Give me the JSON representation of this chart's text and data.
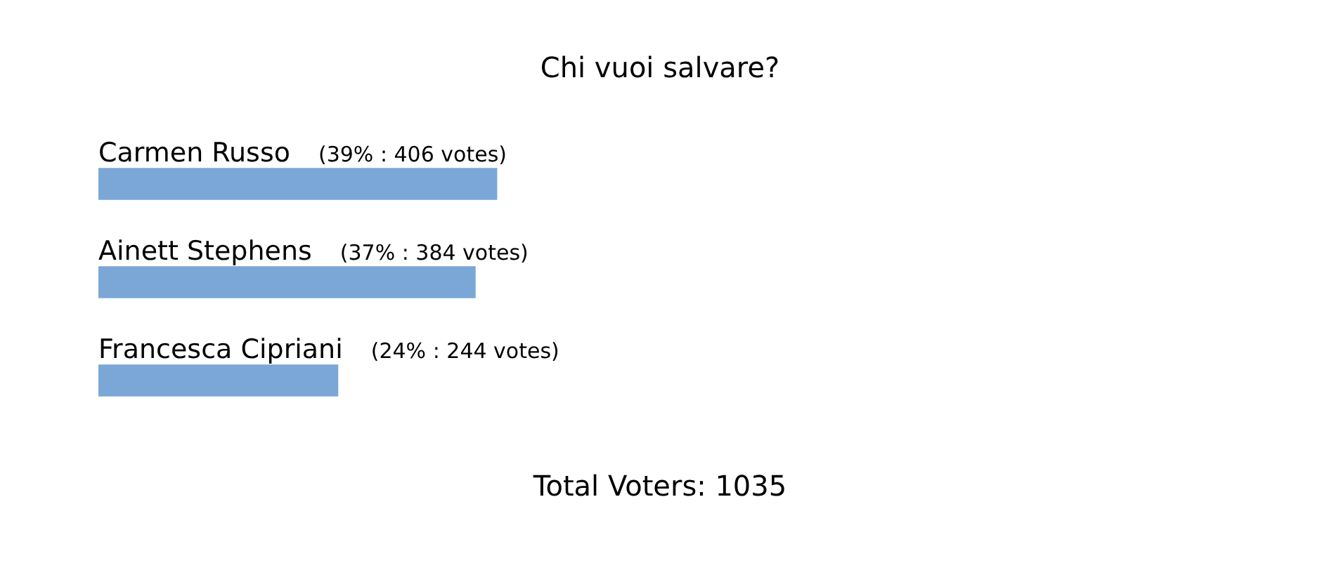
{
  "chart_data": {
    "type": "bar",
    "orientation": "horizontal",
    "title": "Chi vuoi salvare?",
    "categories": [
      "Carmen Russo",
      "Ainett Stephens",
      "Francesca Cipriani"
    ],
    "values": [
      406,
      384,
      244
    ],
    "value_labels": [
      "(39% : 406 votes)",
      "(37% : 384 votes)",
      "(24% : 244 votes)"
    ],
    "color": "#7ba7d7",
    "tick_labels": false,
    "legend": false,
    "annotations": [
      "Total Voters: 1035"
    ]
  }
}
